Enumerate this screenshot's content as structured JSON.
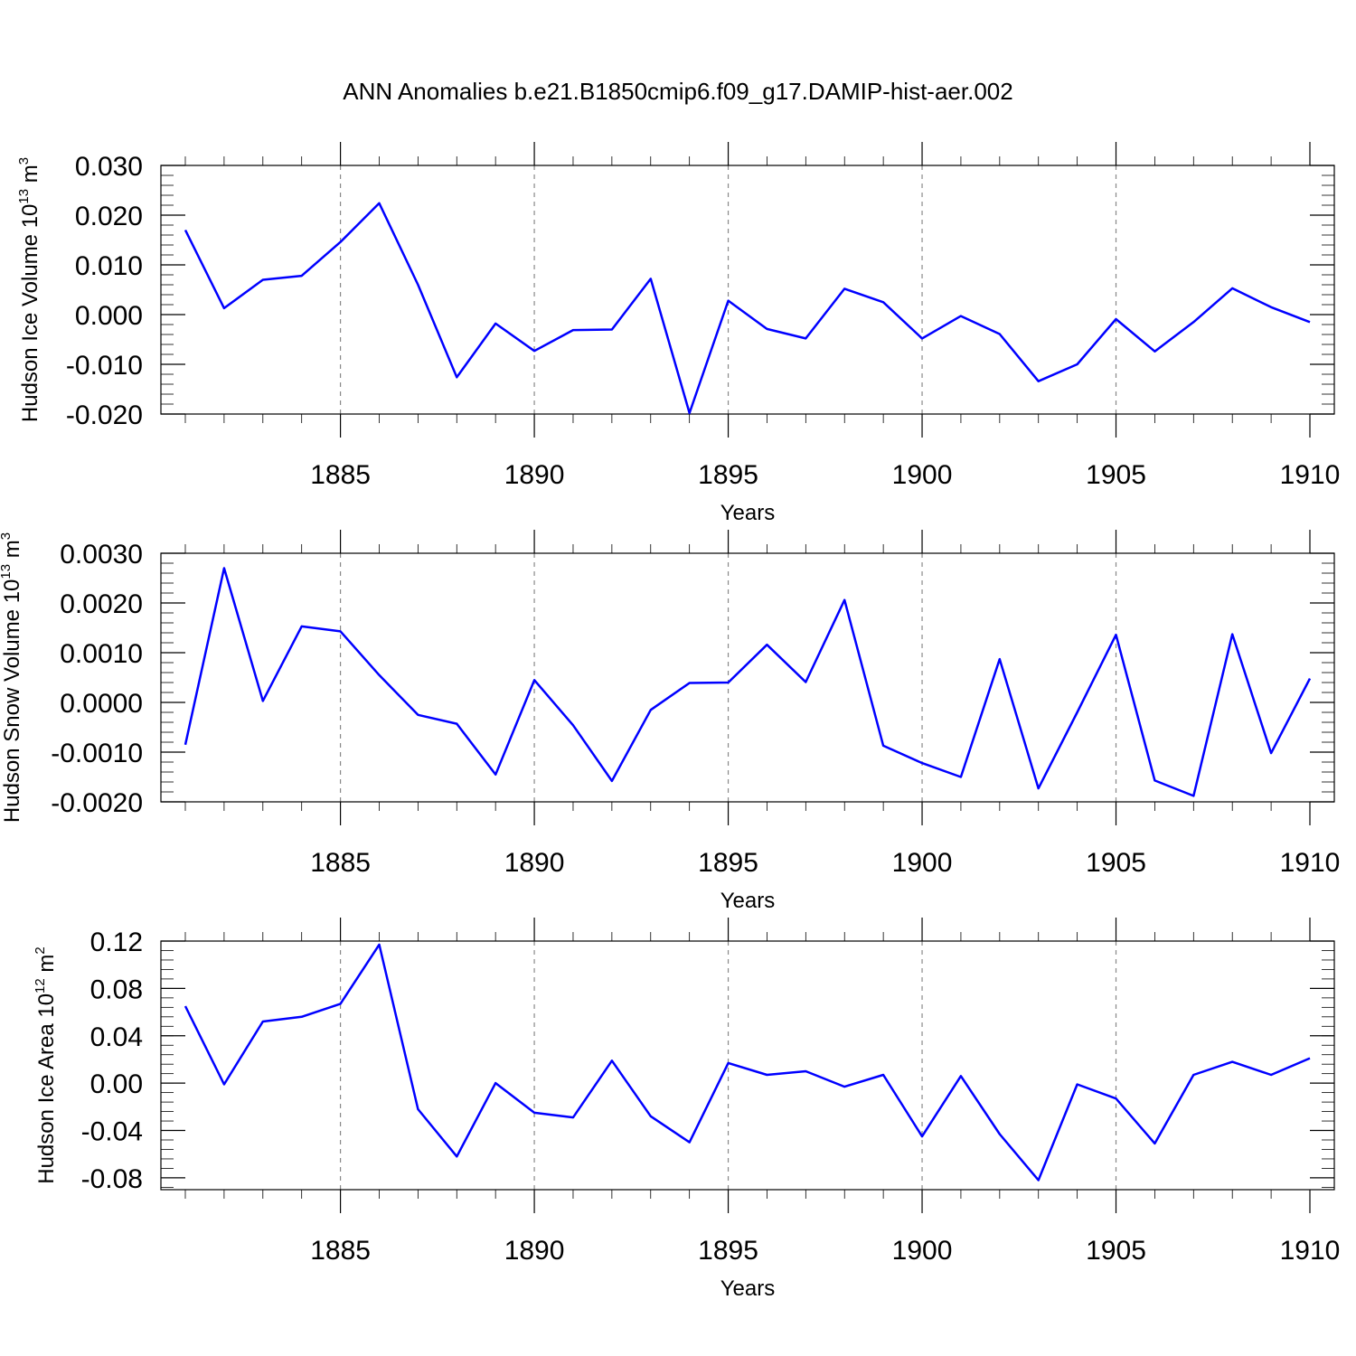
{
  "title": "ANN Anomalies b.e21.B1850cmip6.f09_g17.DAMIP-hist-aer.002",
  "colors": {
    "line": "#0000ff"
  },
  "chart_data": [
    {
      "type": "line",
      "ylabel": {
        "text": "Hudson Ice Volume 10",
        "sup": "13",
        "unit": " m",
        "unit_sup": "3"
      },
      "xlabel": "Years",
      "xlim": [
        1881,
        1910
      ],
      "ylim": [
        -0.02,
        0.03
      ],
      "xticks": [
        1885,
        1890,
        1895,
        1900,
        1905,
        1910
      ],
      "yticks": [
        -0.02,
        -0.01,
        0.0,
        0.01,
        0.02,
        0.03
      ],
      "ytick_labels": [
        "-0.020",
        "-0.010",
        "0.000",
        "0.010",
        "0.020",
        "0.030"
      ],
      "x": [
        1881,
        1882,
        1883,
        1884,
        1885,
        1886,
        1887,
        1888,
        1889,
        1890,
        1891,
        1892,
        1893,
        1894,
        1895,
        1896,
        1897,
        1898,
        1899,
        1900,
        1901,
        1902,
        1903,
        1904,
        1905,
        1906,
        1907,
        1908,
        1909,
        1910
      ],
      "values": [
        0.017,
        0.0013,
        0.007,
        0.0078,
        0.0146,
        0.0224,
        0.006,
        -0.0126,
        -0.0018,
        -0.0073,
        -0.0031,
        -0.003,
        0.0072,
        -0.0198,
        0.0028,
        -0.0029,
        -0.0048,
        0.0052,
        0.0025,
        -0.0048,
        -0.0003,
        -0.0039,
        -0.0134,
        -0.01,
        -0.0009,
        -0.0074,
        -0.0015,
        0.0053,
        0.0015,
        -0.0015
      ]
    },
    {
      "type": "line",
      "ylabel": {
        "text": "Hudson Snow Volume 10",
        "sup": "13",
        "unit": " m",
        "unit_sup": "3"
      },
      "xlabel": "Years",
      "xlim": [
        1881,
        1910
      ],
      "ylim": [
        -0.002,
        0.003
      ],
      "xticks": [
        1885,
        1890,
        1895,
        1900,
        1905,
        1910
      ],
      "yticks": [
        -0.002,
        -0.001,
        0.0,
        0.001,
        0.002,
        0.003
      ],
      "ytick_labels": [
        "-0.0020",
        "-0.0010",
        "0.0000",
        "0.0010",
        "0.0020",
        "0.0030"
      ],
      "x": [
        1881,
        1882,
        1883,
        1884,
        1885,
        1886,
        1887,
        1888,
        1889,
        1890,
        1891,
        1892,
        1893,
        1894,
        1895,
        1896,
        1897,
        1898,
        1899,
        1900,
        1901,
        1902,
        1903,
        1904,
        1905,
        1906,
        1907,
        1908,
        1909,
        1910
      ],
      "values": [
        -0.00085,
        0.0027,
        3e-05,
        0.00153,
        0.00143,
        0.00055,
        -0.00025,
        -0.00043,
        -0.00145,
        0.00045,
        -0.00046,
        -0.00158,
        -0.00015,
        0.00039,
        0.0004,
        0.00116,
        0.00041,
        0.00206,
        -0.00087,
        -0.00122,
        -0.0015,
        0.00087,
        -0.00173,
        -0.0002,
        0.00136,
        -0.00157,
        -0.00188,
        0.00137,
        -0.00102,
        0.00048
      ]
    },
    {
      "type": "line",
      "ylabel": {
        "text": "Hudson Ice Area 10",
        "sup": "12",
        "unit": " m",
        "unit_sup": "2"
      },
      "xlabel": "Years",
      "xlim": [
        1881,
        1910
      ],
      "ylim": [
        -0.09,
        0.12
      ],
      "xticks": [
        1885,
        1890,
        1895,
        1900,
        1905,
        1910
      ],
      "yticks": [
        -0.08,
        -0.04,
        0.0,
        0.04,
        0.08,
        0.12
      ],
      "ytick_labels": [
        "-0.08",
        "-0.04",
        "0.00",
        "0.04",
        "0.08",
        "0.12"
      ],
      "x": [
        1881,
        1882,
        1883,
        1884,
        1885,
        1886,
        1887,
        1888,
        1889,
        1890,
        1891,
        1892,
        1893,
        1894,
        1895,
        1896,
        1897,
        1898,
        1899,
        1900,
        1901,
        1902,
        1903,
        1904,
        1905,
        1906,
        1907,
        1908,
        1909,
        1910
      ],
      "values": [
        0.065,
        -0.001,
        0.052,
        0.056,
        0.067,
        0.117,
        -0.022,
        -0.062,
        0.0,
        -0.025,
        -0.029,
        0.019,
        -0.028,
        -0.05,
        0.017,
        0.007,
        0.01,
        -0.003,
        0.007,
        -0.045,
        0.006,
        -0.043,
        -0.082,
        -0.001,
        -0.013,
        -0.051,
        0.007,
        0.018,
        0.007,
        0.021
      ]
    }
  ]
}
